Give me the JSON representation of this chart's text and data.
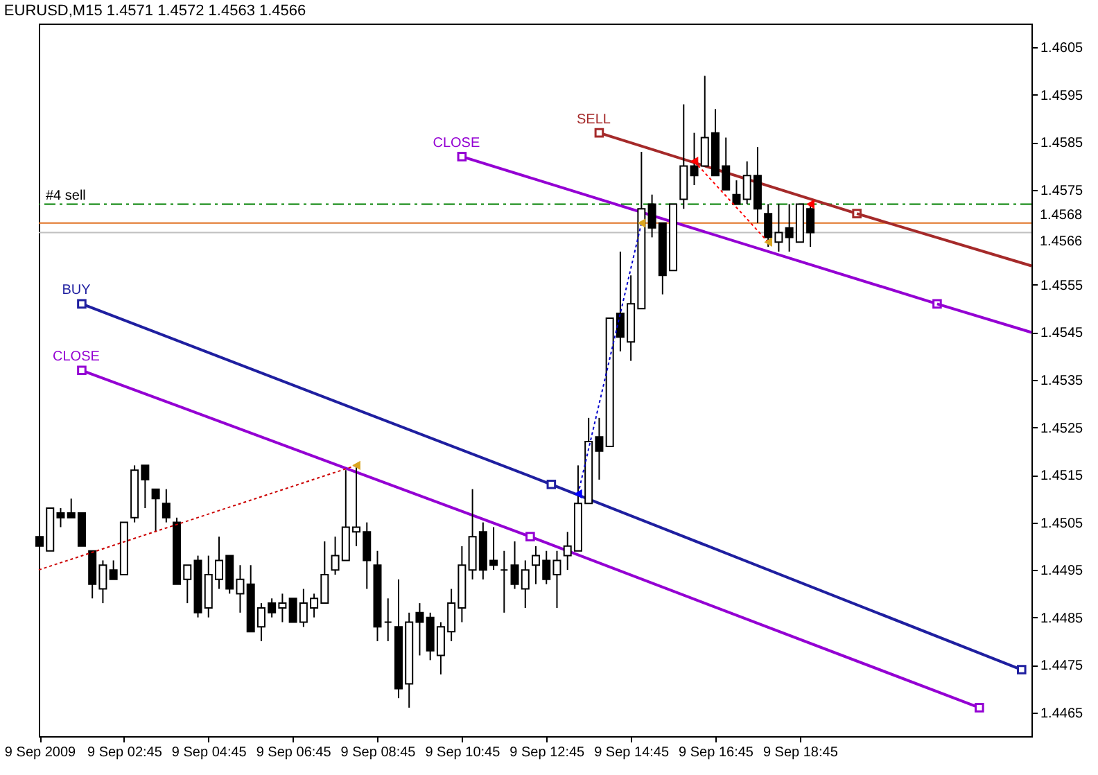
{
  "chart_data": {
    "type": "candlestick",
    "title": "EURUSD,M15 1.4571 1.4572 1.4563 1.4566",
    "x": [
      "2009-09-09T00:45",
      "2009-09-09T01:00",
      "2009-09-09T01:15",
      "2009-09-09T01:30",
      "2009-09-09T01:45",
      "2009-09-09T02:00",
      "2009-09-09T02:15",
      "2009-09-09T02:30",
      "2009-09-09T02:45",
      "2009-09-09T03:00",
      "2009-09-09T03:15",
      "2009-09-09T03:30",
      "2009-09-09T03:45",
      "2009-09-09T04:00",
      "2009-09-09T04:15",
      "2009-09-09T04:30",
      "2009-09-09T04:45",
      "2009-09-09T05:00",
      "2009-09-09T05:15",
      "2009-09-09T05:30",
      "2009-09-09T05:45",
      "2009-09-09T06:00",
      "2009-09-09T06:15",
      "2009-09-09T06:30",
      "2009-09-09T06:45",
      "2009-09-09T07:00",
      "2009-09-09T07:15",
      "2009-09-09T07:30",
      "2009-09-09T07:45",
      "2009-09-09T08:00",
      "2009-09-09T08:15",
      "2009-09-09T08:30",
      "2009-09-09T08:45",
      "2009-09-09T09:00",
      "2009-09-09T09:15",
      "2009-09-09T09:30",
      "2009-09-09T09:45",
      "2009-09-09T10:00",
      "2009-09-09T10:15",
      "2009-09-09T10:30",
      "2009-09-09T10:45",
      "2009-09-09T11:00",
      "2009-09-09T11:15",
      "2009-09-09T11:30",
      "2009-09-09T11:45",
      "2009-09-09T12:00",
      "2009-09-09T12:15",
      "2009-09-09T12:30",
      "2009-09-09T12:45",
      "2009-09-09T13:00",
      "2009-09-09T13:15",
      "2009-09-09T13:30",
      "2009-09-09T13:45",
      "2009-09-09T14:00",
      "2009-09-09T14:15",
      "2009-09-09T14:30",
      "2009-09-09T14:45",
      "2009-09-09T15:00",
      "2009-09-09T15:15",
      "2009-09-09T15:30",
      "2009-09-09T15:45",
      "2009-09-09T16:00",
      "2009-09-09T16:15",
      "2009-09-09T16:30",
      "2009-09-09T16:45",
      "2009-09-09T17:00",
      "2009-09-09T17:15",
      "2009-09-09T17:30",
      "2009-09-09T17:45",
      "2009-09-09T18:00",
      "2009-09-09T18:15",
      "2009-09-09T18:30",
      "2009-09-09T18:45",
      "2009-09-09T19:00"
    ],
    "ohlc": [
      [
        1.4502,
        1.4503,
        1.4496,
        1.45
      ],
      [
        1.4499,
        1.4508,
        1.4499,
        1.4508
      ],
      [
        1.4507,
        1.4508,
        1.4504,
        1.4506
      ],
      [
        1.4507,
        1.451,
        1.4506,
        1.4506
      ],
      [
        1.4507,
        1.4507,
        1.45,
        1.45
      ],
      [
        1.4499,
        1.4499,
        1.4489,
        1.4492
      ],
      [
        1.4491,
        1.4497,
        1.4488,
        1.4496
      ],
      [
        1.4495,
        1.4497,
        1.4493,
        1.4493
      ],
      [
        1.4494,
        1.4505,
        1.4494,
        1.4505
      ],
      [
        1.4506,
        1.4517,
        1.4505,
        1.4516
      ],
      [
        1.4517,
        1.4517,
        1.4508,
        1.4514
      ],
      [
        1.4512,
        1.4512,
        1.4503,
        1.451
      ],
      [
        1.4509,
        1.4512,
        1.4505,
        1.4506
      ],
      [
        1.4505,
        1.4506,
        1.4492,
        1.4492
      ],
      [
        1.4493,
        1.4496,
        1.4488,
        1.4496
      ],
      [
        1.4497,
        1.4498,
        1.4485,
        1.4486
      ],
      [
        1.4487,
        1.4498,
        1.4485,
        1.4494
      ],
      [
        1.4493,
        1.4502,
        1.4491,
        1.4497
      ],
      [
        1.4498,
        1.4498,
        1.449,
        1.4491
      ],
      [
        1.449,
        1.4496,
        1.4486,
        1.4493
      ],
      [
        1.4492,
        1.4496,
        1.4482,
        1.4482
      ],
      [
        1.4483,
        1.4488,
        1.448,
        1.4487
      ],
      [
        1.4488,
        1.4489,
        1.4485,
        1.4486
      ],
      [
        1.4487,
        1.449,
        1.4484,
        1.4488
      ],
      [
        1.4489,
        1.4489,
        1.4484,
        1.4484
      ],
      [
        1.4484,
        1.4491,
        1.4483,
        1.4488
      ],
      [
        1.4487,
        1.449,
        1.4485,
        1.4489
      ],
      [
        1.4488,
        1.4501,
        1.4488,
        1.4494
      ],
      [
        1.4495,
        1.4502,
        1.4494,
        1.4498
      ],
      [
        1.4497,
        1.4516,
        1.4497,
        1.4504
      ],
      [
        1.4503,
        1.4517,
        1.45,
        1.4504
      ],
      [
        1.4503,
        1.4505,
        1.4491,
        1.4497
      ],
      [
        1.4496,
        1.4499,
        1.448,
        1.4483
      ],
      [
        1.4484,
        1.4489,
        1.448,
        1.4484
      ],
      [
        1.4483,
        1.4493,
        1.4468,
        1.447
      ],
      [
        1.4471,
        1.4486,
        1.4466,
        1.4484
      ],
      [
        1.4486,
        1.4488,
        1.4477,
        1.4484
      ],
      [
        1.4485,
        1.4486,
        1.4476,
        1.4478
      ],
      [
        1.4477,
        1.4484,
        1.4473,
        1.4483
      ],
      [
        1.4482,
        1.4491,
        1.448,
        1.4488
      ],
      [
        1.4487,
        1.45,
        1.4484,
        1.4496
      ],
      [
        1.4495,
        1.4512,
        1.4493,
        1.4502
      ],
      [
        1.4503,
        1.4505,
        1.4493,
        1.4495
      ],
      [
        1.4497,
        1.4504,
        1.4495,
        1.4496
      ],
      [
        1.4495,
        1.4499,
        1.4486,
        1.4495
      ],
      [
        1.4496,
        1.4501,
        1.4491,
        1.4492
      ],
      [
        1.4491,
        1.4497,
        1.4487,
        1.4495
      ],
      [
        1.4496,
        1.45,
        1.4492,
        1.4498
      ],
      [
        1.4497,
        1.4499,
        1.4492,
        1.4493
      ],
      [
        1.4494,
        1.4499,
        1.4487,
        1.4497
      ],
      [
        1.4498,
        1.4503,
        1.4495,
        1.45
      ],
      [
        1.4499,
        1.4517,
        1.4499,
        1.4509
      ],
      [
        1.4509,
        1.4527,
        1.4509,
        1.4522
      ],
      [
        1.4523,
        1.4527,
        1.4514,
        1.452
      ],
      [
        1.4521,
        1.4548,
        1.4521,
        1.4548
      ],
      [
        1.4549,
        1.4562,
        1.4541,
        1.4544
      ],
      [
        1.4543,
        1.4557,
        1.4539,
        1.4551
      ],
      [
        1.455,
        1.4583,
        1.455,
        1.4571
      ],
      [
        1.4572,
        1.4574,
        1.4565,
        1.4567
      ],
      [
        1.4568,
        1.4568,
        1.4553,
        1.4557
      ],
      [
        1.4558,
        1.4572,
        1.4558,
        1.4572
      ],
      [
        1.4573,
        1.4593,
        1.4571,
        1.458
      ],
      [
        1.458,
        1.4587,
        1.4576,
        1.4578
      ],
      [
        1.458,
        1.4599,
        1.458,
        1.4586
      ],
      [
        1.4587,
        1.4592,
        1.4578,
        1.4578
      ],
      [
        1.458,
        1.4586,
        1.4575,
        1.4575
      ],
      [
        1.4574,
        1.4577,
        1.4572,
        1.4572
      ],
      [
        1.4573,
        1.4581,
        1.4572,
        1.4578
      ],
      [
        1.4578,
        1.4584,
        1.4568,
        1.4571
      ],
      [
        1.457,
        1.4572,
        1.4563,
        1.4565
      ],
      [
        1.4564,
        1.4572,
        1.4562,
        1.4566
      ],
      [
        1.4567,
        1.4572,
        1.4562,
        1.4565
      ],
      [
        1.4564,
        1.4572,
        1.4564,
        1.4572
      ],
      [
        1.4571,
        1.4572,
        1.4563,
        1.4566
      ]
    ],
    "color": "#000000",
    "colors": [
      "#000000",
      "#ffffff",
      "#000000",
      "#000000",
      "#000000",
      "#000000",
      "#ffffff",
      "#000000",
      "#ffffff",
      "#ffffff",
      "#000000",
      "#000000",
      "#000000",
      "#000000",
      "#ffffff",
      "#000000",
      "#ffffff",
      "#ffffff",
      "#000000",
      "#ffffff",
      "#000000",
      "#ffffff",
      "#000000",
      "#ffffff",
      "#000000",
      "#ffffff",
      "#ffffff",
      "#ffffff",
      "#ffffff",
      "#ffffff",
      "#ffffff",
      "#000000",
      "#000000",
      "#000000",
      "#000000",
      "#ffffff",
      "#000000",
      "#000000",
      "#ffffff",
      "#ffffff",
      "#ffffff",
      "#ffffff",
      "#000000",
      "#000000",
      "#000000",
      "#000000",
      "#ffffff",
      "#ffffff",
      "#000000",
      "#ffffff",
      "#ffffff",
      "#ffffff",
      "#ffffff",
      "#000000",
      "#ffffff",
      "#000000",
      "#ffffff",
      "#ffffff",
      "#000000",
      "#000000",
      "#ffffff",
      "#ffffff",
      "#000000",
      "#ffffff",
      "#000000",
      "#000000",
      "#000000",
      "#ffffff",
      "#000000",
      "#000000",
      "#ffffff",
      "#000000",
      "#ffffff",
      "#000000"
    ],
    "series": [
      {
        "type": "line",
        "name": "BUY",
        "color": "#1f1fa0",
        "marker": "square",
        "x": [
          "2009-09-09T01:45",
          "2009-09-09T12:52",
          "2009-09-10T00:00"
        ],
        "values": [
          1.4551,
          1.4513,
          1.4474
        ]
      },
      {
        "type": "line",
        "name": "CLOSE",
        "color": "#9400d3",
        "marker": "square",
        "x": [
          "2009-09-09T01:45",
          "2009-09-09T12:22",
          "2009-09-09T23:00"
        ],
        "values": [
          1.4537,
          1.4502,
          1.4466
        ]
      },
      {
        "type": "line",
        "name": "CLOSE",
        "color": "#9400d3",
        "marker": "square",
        "x": [
          "2009-09-09T10:45",
          "2009-09-09T22:00"
        ],
        "values": [
          1.4582,
          1.4551
        ]
      },
      {
        "type": "line",
        "color": "#9400d3",
        "x": [
          "2009-09-09T22:00",
          "2009-09-10T00:14"
        ],
        "values": [
          1.4551,
          1.4545
        ]
      },
      {
        "type": "line",
        "name": "SELL",
        "color": "#a52a2a",
        "marker": "square",
        "x": [
          "2009-09-09T14:00",
          "2009-09-09T20:06"
        ],
        "values": [
          1.4587,
          1.457
        ]
      },
      {
        "type": "line",
        "color": "#a52a2a",
        "x": [
          "2009-09-09T20:06",
          "2009-09-10T00:14"
        ],
        "values": [
          1.457,
          1.4559
        ]
      },
      {
        "type": "line",
        "color": "#cc0000",
        "line_style": "dotted",
        "x": [
          "2009-09-09T00:44",
          "2009-09-09T08:15"
        ],
        "values": [
          1.4495,
          1.4517
        ]
      },
      {
        "type": "line",
        "color": "#0000cc",
        "line_style": "dotted",
        "x": [
          "2009-09-09T13:30",
          "2009-09-09T15:00"
        ],
        "values": [
          1.4511,
          1.4568
        ]
      },
      {
        "type": "line",
        "color": "#ff0000",
        "line_style": "dotted",
        "x": [
          "2009-09-09T16:15",
          "2009-09-09T18:00"
        ],
        "values": [
          1.4581,
          1.4564
        ]
      },
      {
        "type": "scatter",
        "color": "#daa520",
        "marker": "triangle",
        "x": [
          "2009-09-09T08:15",
          "2009-09-09T15:00",
          "2009-09-09T18:00"
        ],
        "values": [
          1.4517,
          1.4568,
          1.4564
        ]
      },
      {
        "type": "scatter",
        "color": "#ff0000",
        "marker": "triangle",
        "x": [
          "2009-09-09T16:15",
          "2009-09-09T19:00"
        ],
        "values": [
          1.4581,
          1.4572
        ]
      },
      {
        "type": "scatter",
        "color": "#0000ff",
        "marker": "triangle",
        "x": [
          "2009-09-09T13:30"
        ],
        "values": [
          1.4511
        ]
      }
    ],
    "ref_lines": [
      {
        "axis": "y",
        "value": 1.4572,
        "label": "#4 sell",
        "color": "#008000",
        "line_style": "dashed"
      },
      {
        "axis": "y",
        "value": 1.4568,
        "label": "1.4568",
        "color": "#e07020"
      },
      {
        "axis": "y",
        "value": 1.4566,
        "label": "1.4566",
        "color": "#c0c0c0"
      }
    ],
    "xlim": [
      "2009-09-09T00:44",
      "2009-09-10T00:14"
    ],
    "xticks": [
      {
        "value": "2009-09-09T00:45",
        "label": "9 Sep 2009"
      },
      {
        "value": "2009-09-09T02:45",
        "label": "9 Sep 02:45"
      },
      {
        "value": "2009-09-09T04:45",
        "label": "9 Sep 04:45"
      },
      {
        "value": "2009-09-09T06:45",
        "label": "9 Sep 06:45"
      },
      {
        "value": "2009-09-09T08:45",
        "label": "9 Sep 08:45"
      },
      {
        "value": "2009-09-09T10:45",
        "label": "9 Sep 10:45"
      },
      {
        "value": "2009-09-09T12:45",
        "label": "9 Sep 12:45"
      },
      {
        "value": "2009-09-09T14:45",
        "label": "9 Sep 14:45"
      },
      {
        "value": "2009-09-09T16:45",
        "label": "9 Sep 16:45"
      },
      {
        "value": "2009-09-09T18:45",
        "label": "9 Sep 18:45"
      }
    ],
    "ylim": [
      1.446,
      1.461
    ],
    "yticks": [
      1.4465,
      1.4475,
      1.4485,
      1.4495,
      1.4505,
      1.4515,
      1.4525,
      1.4535,
      1.4545,
      1.4555,
      1.4575,
      1.4585,
      1.4595,
      1.4605
    ]
  }
}
